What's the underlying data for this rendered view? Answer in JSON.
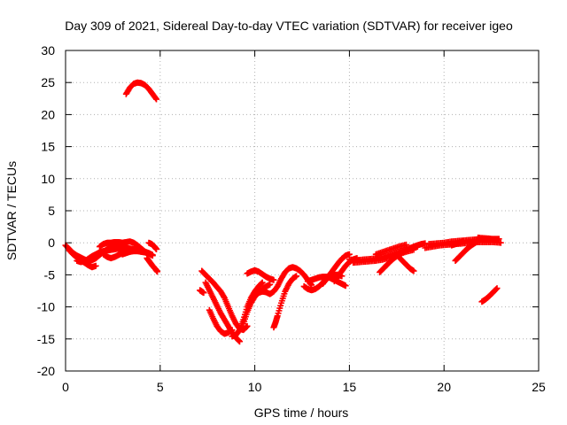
{
  "chart_data": {
    "type": "scatter",
    "title": "Day 309 of 2021, Sidereal Day-to-day VTEC variation (SDTVAR) for receiver igeo",
    "xlabel": "GPS time / hours",
    "ylabel": "SDTVAR / TECUs",
    "xlim": [
      0,
      25
    ],
    "ylim": [
      -20,
      30
    ],
    "xticks": [
      0,
      5,
      10,
      15,
      20,
      25
    ],
    "yticks": [
      -20,
      -15,
      -10,
      -5,
      0,
      5,
      10,
      15,
      20,
      25,
      30
    ],
    "xtick_labels": [
      "0",
      "5",
      "10",
      "15",
      "20",
      "25"
    ],
    "ytick_labels": [
      "-20",
      "-15",
      "-10",
      "-5",
      "0",
      "5",
      "10",
      "15",
      "20",
      "25",
      "30"
    ],
    "grid": true,
    "marker": "+",
    "series": [
      {
        "name": "tracks",
        "color": "#ff0000",
        "tracks": [
          {
            "x": [
              3.2,
              3.4,
              3.6,
              3.8,
              4.0,
              4.2,
              4.4,
              4.6,
              4.8
            ],
            "y": [
              23.2,
              24.2,
              24.8,
              25.0,
              24.9,
              24.6,
              24.0,
              23.2,
              22.4
            ]
          },
          {
            "x": [
              0.0,
              0.2,
              0.4,
              0.6,
              0.8,
              1.0,
              1.2,
              1.4,
              1.6,
              1.8,
              2.0,
              2.2,
              2.4,
              2.6,
              2.8,
              3.0
            ],
            "y": [
              -0.4,
              -1.0,
              -1.6,
              -2.0,
              -2.3,
              -2.6,
              -2.8,
              -2.7,
              -2.4,
              -1.9,
              -1.4,
              -1.0,
              -0.8,
              -0.6,
              -0.5,
              -0.5
            ]
          },
          {
            "x": [
              0.2,
              0.4,
              0.6,
              0.8,
              1.0,
              1.2,
              1.4,
              1.6
            ],
            "y": [
              -1.2,
              -1.8,
              -2.3,
              -2.7,
              -3.1,
              -3.5,
              -3.8,
              -3.6
            ]
          },
          {
            "x": [
              0.6,
              0.8,
              1.0,
              1.2,
              1.4,
              1.6,
              1.8,
              2.0,
              2.2,
              2.4,
              2.6,
              2.8,
              3.0,
              3.2,
              3.4,
              3.6,
              3.8,
              4.0,
              4.2,
              4.4,
              4.6
            ],
            "y": [
              -2.8,
              -3.0,
              -2.9,
              -2.5,
              -2.1,
              -1.8,
              -1.5,
              -1.3,
              -1.2,
              -1.1,
              -1.0,
              -0.9,
              -0.8,
              -0.8,
              -0.9,
              -1.0,
              -1.1,
              -1.2,
              -1.4,
              -1.6,
              -1.9
            ]
          },
          {
            "x": [
              1.8,
              2.0,
              2.2,
              2.4,
              2.6,
              2.8,
              3.0,
              3.2,
              3.4,
              3.6,
              3.8,
              4.0,
              4.2
            ],
            "y": [
              -0.6,
              -0.2,
              0.0,
              0.0,
              0.1,
              0.1,
              0.0,
              0.1,
              0.2,
              0.0,
              -0.4,
              -0.9,
              -1.4
            ]
          },
          {
            "x": [
              2.0,
              2.2,
              2.4,
              2.6,
              2.8,
              3.0,
              3.2
            ],
            "y": [
              -1.8,
              -2.2,
              -2.4,
              -2.2,
              -1.9,
              -1.6,
              -1.3
            ]
          },
          {
            "x": [
              3.0,
              3.2,
              3.4,
              3.6,
              3.8,
              4.0,
              4.2,
              4.4,
              4.6
            ],
            "y": [
              -1.8,
              -1.6,
              -1.4,
              -1.3,
              -1.3,
              -1.4,
              -1.5,
              -1.7,
              -2.0
            ]
          },
          {
            "x": [
              4.4,
              4.55,
              4.7,
              4.8
            ],
            "y": [
              0.0,
              -0.2,
              -0.6,
              -1.0
            ]
          },
          {
            "x": [
              4.3,
              4.45,
              4.6,
              4.75,
              4.85
            ],
            "y": [
              -2.4,
              -3.0,
              -3.6,
              -4.1,
              -4.5
            ]
          },
          {
            "x": [
              7.2,
              7.4,
              7.6,
              7.8,
              8.0,
              8.2,
              8.4,
              8.6,
              8.8,
              9.0,
              9.2,
              9.4,
              9.6
            ],
            "y": [
              -4.4,
              -5.0,
              -5.6,
              -6.2,
              -6.9,
              -7.6,
              -8.6,
              -10.0,
              -11.4,
              -12.6,
              -13.4,
              -13.6,
              -13.0
            ]
          },
          {
            "x": [
              7.4,
              7.6,
              7.8,
              8.0,
              8.2,
              8.4,
              8.6,
              8.8,
              9.0,
              9.2
            ],
            "y": [
              -6.2,
              -7.4,
              -8.6,
              -9.8,
              -11.0,
              -12.0,
              -13.0,
              -14.0,
              -14.8,
              -15.4
            ]
          },
          {
            "x": [
              7.6,
              7.8,
              8.0,
              8.2,
              8.4,
              8.6,
              8.8
            ],
            "y": [
              -10.5,
              -11.8,
              -13.0,
              -13.8,
              -14.2,
              -14.0,
              -13.6
            ]
          },
          {
            "x": [
              7.1,
              7.2,
              7.3
            ],
            "y": [
              -7.4,
              -7.6,
              -7.8
            ]
          },
          {
            "x": [
              8.8,
              9.0,
              9.2,
              9.4,
              9.6,
              9.8,
              10.0,
              10.2,
              10.4
            ],
            "y": [
              -14.6,
              -14.4,
              -13.6,
              -12.0,
              -10.0,
              -8.6,
              -7.6,
              -6.8,
              -6.2
            ]
          },
          {
            "x": [
              9.4,
              9.6,
              9.8,
              10.0,
              10.2,
              10.4,
              10.6,
              10.8,
              11.0,
              11.2,
              11.4,
              11.6,
              11.8,
              12.0,
              12.2,
              12.4,
              12.6,
              12.8,
              13.0
            ],
            "y": [
              -12.6,
              -10.8,
              -9.4,
              -8.4,
              -7.8,
              -7.6,
              -7.7,
              -8.0,
              -7.6,
              -6.8,
              -5.6,
              -4.6,
              -4.0,
              -3.8,
              -4.0,
              -4.4,
              -5.0,
              -5.8,
              -6.6
            ]
          },
          {
            "x": [
              9.6,
              9.8,
              10.0,
              10.2,
              10.4,
              10.6,
              10.8,
              11.0
            ],
            "y": [
              -4.8,
              -4.5,
              -4.3,
              -4.5,
              -4.9,
              -5.3,
              -5.6,
              -5.8
            ]
          },
          {
            "x": [
              10.4,
              10.6,
              10.8
            ],
            "y": [
              -7.2,
              -6.8,
              -6.5
            ]
          },
          {
            "x": [
              11.0,
              11.1,
              11.2,
              11.4,
              11.6,
              11.8,
              12.0,
              12.2
            ],
            "y": [
              -13.2,
              -12.4,
              -11.4,
              -9.4,
              -7.6,
              -6.4,
              -5.6,
              -5.2
            ]
          },
          {
            "x": [
              12.6,
              12.8,
              13.0,
              13.2,
              13.4,
              13.6,
              13.8,
              14.0,
              14.2,
              14.4,
              14.6
            ],
            "y": [
              -6.8,
              -7.2,
              -7.4,
              -7.2,
              -6.8,
              -6.2,
              -5.6,
              -5.2,
              -5.0,
              -5.0,
              -5.2
            ]
          },
          {
            "x": [
              12.8,
              13.0,
              13.2,
              13.4,
              13.6,
              13.8,
              14.0,
              14.2,
              14.4,
              14.6,
              14.8
            ],
            "y": [
              -6.0,
              -5.8,
              -5.6,
              -5.4,
              -5.3,
              -5.3,
              -5.5,
              -5.8,
              -6.1,
              -6.4,
              -6.7
            ]
          },
          {
            "x": [
              13.6,
              13.8,
              14.0,
              14.2,
              14.4,
              14.6,
              14.8,
              15.0
            ],
            "y": [
              -6.4,
              -5.6,
              -4.8,
              -4.0,
              -3.2,
              -2.5,
              -2.0,
              -1.8
            ]
          },
          {
            "x": [
              14.2,
              14.4,
              14.6,
              14.8,
              15.0,
              15.2,
              15.4
            ],
            "y": [
              -6.0,
              -5.2,
              -4.4,
              -3.6,
              -3.0,
              -2.6,
              -2.4
            ]
          },
          {
            "x": [
              15.0,
              15.4,
              15.8,
              16.2,
              16.6,
              17.0,
              17.4,
              17.8,
              18.2,
              18.6
            ],
            "y": [
              -2.6,
              -2.7,
              -2.6,
              -2.5,
              -2.3,
              -2.0,
              -1.6,
              -1.2,
              -0.8,
              -0.6
            ]
          },
          {
            "x": [
              15.2,
              15.6,
              16.0,
              16.4,
              16.8,
              17.2,
              17.6,
              18.0,
              18.4
            ],
            "y": [
              -3.1,
              -3.0,
              -2.9,
              -2.8,
              -2.6,
              -2.2,
              -1.8,
              -1.4,
              -1.1
            ]
          },
          {
            "x": [
              16.6,
              16.8,
              17.0,
              17.2,
              17.4,
              17.6,
              17.8,
              18.0,
              18.2,
              18.4,
              18.6,
              18.8,
              19.0
            ],
            "y": [
              -4.6,
              -4.0,
              -3.4,
              -2.8,
              -2.3,
              -1.9,
              -1.5,
              -1.2,
              -0.9,
              -0.6,
              -0.4,
              -0.2,
              -0.1
            ]
          },
          {
            "x": [
              17.6,
              17.8,
              18.0,
              18.2,
              18.4
            ],
            "y": [
              -2.2,
              -2.8,
              -3.4,
              -4.0,
              -4.4
            ]
          },
          {
            "x": [
              16.4,
              16.8,
              17.2,
              17.6,
              18.0
            ],
            "y": [
              -1.8,
              -1.4,
              -1.0,
              -0.6,
              -0.3
            ]
          },
          {
            "x": [
              19.0,
              19.4,
              19.8,
              20.2,
              20.6,
              21.0,
              21.4,
              21.8,
              22.2,
              22.6,
              23.0
            ],
            "y": [
              -0.8,
              -0.6,
              -0.4,
              -0.3,
              -0.2,
              -0.1,
              0.0,
              0.1,
              0.1,
              0.1,
              0.0
            ]
          },
          {
            "x": [
              19.2,
              19.6,
              20.0,
              20.4,
              20.8,
              21.2,
              21.6,
              22.0,
              22.4,
              22.8
            ],
            "y": [
              -0.2,
              -0.1,
              0.0,
              0.2,
              0.3,
              0.4,
              0.5,
              0.6,
              0.6,
              0.5
            ]
          },
          {
            "x": [
              20.6,
              20.8,
              21.0,
              21.2,
              21.4,
              21.6,
              21.8
            ],
            "y": [
              -2.8,
              -2.2,
              -1.6,
              -1.0,
              -0.5,
              -0.1,
              0.3
            ]
          },
          {
            "x": [
              20.4,
              20.6,
              20.8,
              21.0
            ],
            "y": [
              -0.4,
              -0.2,
              0.0,
              0.2
            ]
          },
          {
            "x": [
              22.0,
              22.2,
              22.4,
              22.6,
              22.8
            ],
            "y": [
              -9.2,
              -8.8,
              -8.3,
              -7.7,
              -7.1
            ]
          },
          {
            "x": [
              21.8,
              22.2,
              22.6,
              22.9
            ],
            "y": [
              0.8,
              0.7,
              0.6,
              0.6
            ]
          }
        ]
      }
    ]
  }
}
